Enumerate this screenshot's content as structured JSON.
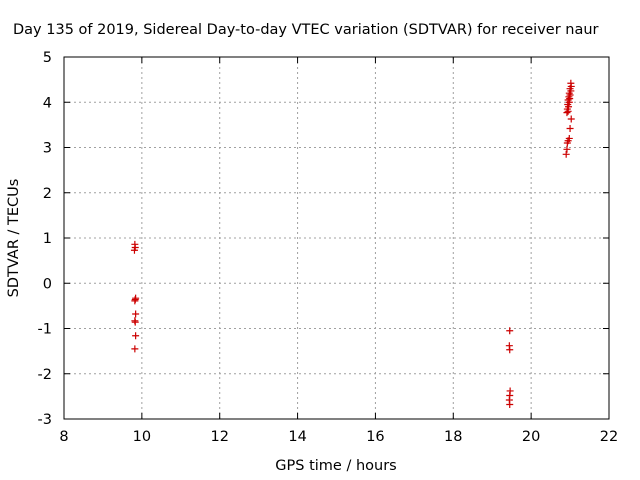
{
  "chart_data": {
    "type": "scatter",
    "title": "Day 135 of 2019, Sidereal Day-to-day VTEC variation (SDTVAR) for receiver naur",
    "xlabel": "GPS time / hours",
    "ylabel": "SDTVAR / TECUs",
    "xlim": [
      8,
      22
    ],
    "ylim": [
      -3,
      5
    ],
    "xticks": [
      8,
      10,
      12,
      14,
      16,
      18,
      20,
      22
    ],
    "yticks": [
      -3,
      -2,
      -1,
      0,
      1,
      2,
      3,
      4,
      5
    ],
    "grid": true,
    "marker": "+",
    "series": [
      {
        "name": "SDTVAR",
        "color": "#cc0000",
        "points": [
          [
            9.82,
            0.86
          ],
          [
            9.83,
            0.79
          ],
          [
            9.81,
            0.73
          ],
          [
            9.84,
            -0.33
          ],
          [
            9.83,
            -0.36
          ],
          [
            9.82,
            -0.39
          ],
          [
            9.84,
            -0.68
          ],
          [
            9.82,
            -0.83
          ],
          [
            9.83,
            -0.86
          ],
          [
            9.84,
            -1.16
          ],
          [
            9.82,
            -1.45
          ],
          [
            19.45,
            -1.05
          ],
          [
            19.44,
            -1.38
          ],
          [
            19.45,
            -1.47
          ],
          [
            19.46,
            -2.38
          ],
          [
            19.45,
            -2.48
          ],
          [
            19.44,
            -2.58
          ],
          [
            19.45,
            -2.68
          ],
          [
            21.02,
            4.42
          ],
          [
            21.03,
            4.35
          ],
          [
            21.0,
            4.3
          ],
          [
            21.02,
            4.25
          ],
          [
            20.98,
            4.2
          ],
          [
            21.0,
            4.16
          ],
          [
            20.97,
            4.12
          ],
          [
            20.99,
            4.08
          ],
          [
            20.95,
            4.05
          ],
          [
            20.98,
            4.0
          ],
          [
            20.94,
            3.95
          ],
          [
            20.96,
            3.9
          ],
          [
            20.93,
            3.85
          ],
          [
            20.95,
            3.8
          ],
          [
            20.92,
            3.77
          ],
          [
            21.03,
            3.63
          ],
          [
            21.0,
            3.42
          ],
          [
            20.98,
            3.2
          ],
          [
            20.95,
            3.15
          ],
          [
            20.93,
            3.1
          ],
          [
            20.92,
            2.96
          ],
          [
            20.9,
            2.85
          ]
        ]
      }
    ]
  }
}
